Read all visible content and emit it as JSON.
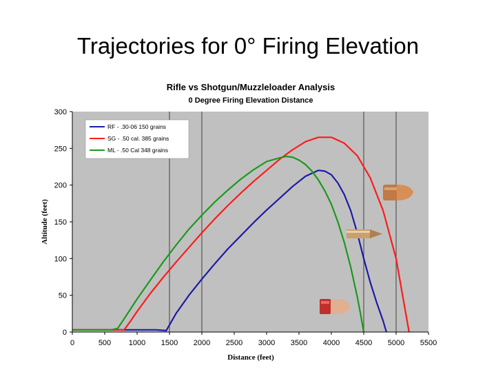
{
  "slide": {
    "title": "Trajectories for 0° Firing Elevation"
  },
  "chart_data": {
    "type": "line",
    "title": "Rifle vs Shotgun/Muzzleloader Analysis",
    "subtitle": "0 Degree Firing Elevation Distance",
    "xlabel": "Distance (feet)",
    "ylabel": "Altitude (feet)",
    "xlim": [
      0,
      5500
    ],
    "ylim": [
      0,
      300
    ],
    "xticks": [
      0,
      500,
      1000,
      1500,
      2000,
      2500,
      3000,
      3500,
      4000,
      4500,
      5000,
      5500
    ],
    "yticks": [
      0,
      50,
      100,
      150,
      200,
      250,
      300
    ],
    "vertical_gridlines": [
      1500,
      2000,
      4500,
      5000
    ],
    "plot_background": "#c0c0c0",
    "legend_position": "top-left",
    "series": [
      {
        "name": "RF - .30-06 150 grains",
        "color": "#1a1aa6",
        "x": [
          0,
          1300,
          1450,
          1600,
          1800,
          2000,
          2200,
          2400,
          2600,
          2800,
          3000,
          3200,
          3400,
          3600,
          3800,
          3900,
          4000,
          4100,
          4200,
          4300,
          4400,
          4500,
          4600,
          4700,
          4800,
          4850
        ],
        "y": [
          3,
          3,
          2,
          25,
          50,
          72,
          93,
          113,
          131,
          149,
          166,
          182,
          198,
          212,
          220,
          219,
          214,
          203,
          187,
          165,
          135,
          100,
          68,
          40,
          15,
          0
        ]
      },
      {
        "name": "SG - .50 cal. 385 grains",
        "color": "#ff1a1a",
        "x": [
          0,
          650,
          800,
          900,
          1000,
          1200,
          1400,
          1600,
          1800,
          2000,
          2200,
          2400,
          2600,
          2800,
          3000,
          3200,
          3400,
          3600,
          3800,
          4000,
          4200,
          4400,
          4600,
          4800,
          5000,
          5100,
          5200
        ],
        "y": [
          3,
          3,
          3,
          15,
          28,
          52,
          74,
          95,
          115,
          135,
          154,
          172,
          189,
          205,
          220,
          235,
          248,
          259,
          265,
          265,
          257,
          240,
          210,
          165,
          100,
          50,
          0
        ]
      },
      {
        "name": "ML - .50 Cal 348 grains",
        "color": "#1a991a",
        "x": [
          0,
          600,
          700,
          800,
          1000,
          1200,
          1400,
          1600,
          1800,
          2000,
          2200,
          2400,
          2600,
          2800,
          3000,
          3200,
          3300,
          3400,
          3500,
          3600,
          3700,
          3800,
          3900,
          4000,
          4100,
          4200,
          4300,
          4400,
          4450,
          4500
        ],
        "y": [
          3,
          3,
          5,
          18,
          45,
          70,
          95,
          118,
          140,
          159,
          177,
          193,
          208,
          221,
          232,
          237,
          239,
          238,
          234,
          228,
          219,
          207,
          192,
          174,
          150,
          122,
          88,
          48,
          25,
          0
        ]
      }
    ]
  }
}
